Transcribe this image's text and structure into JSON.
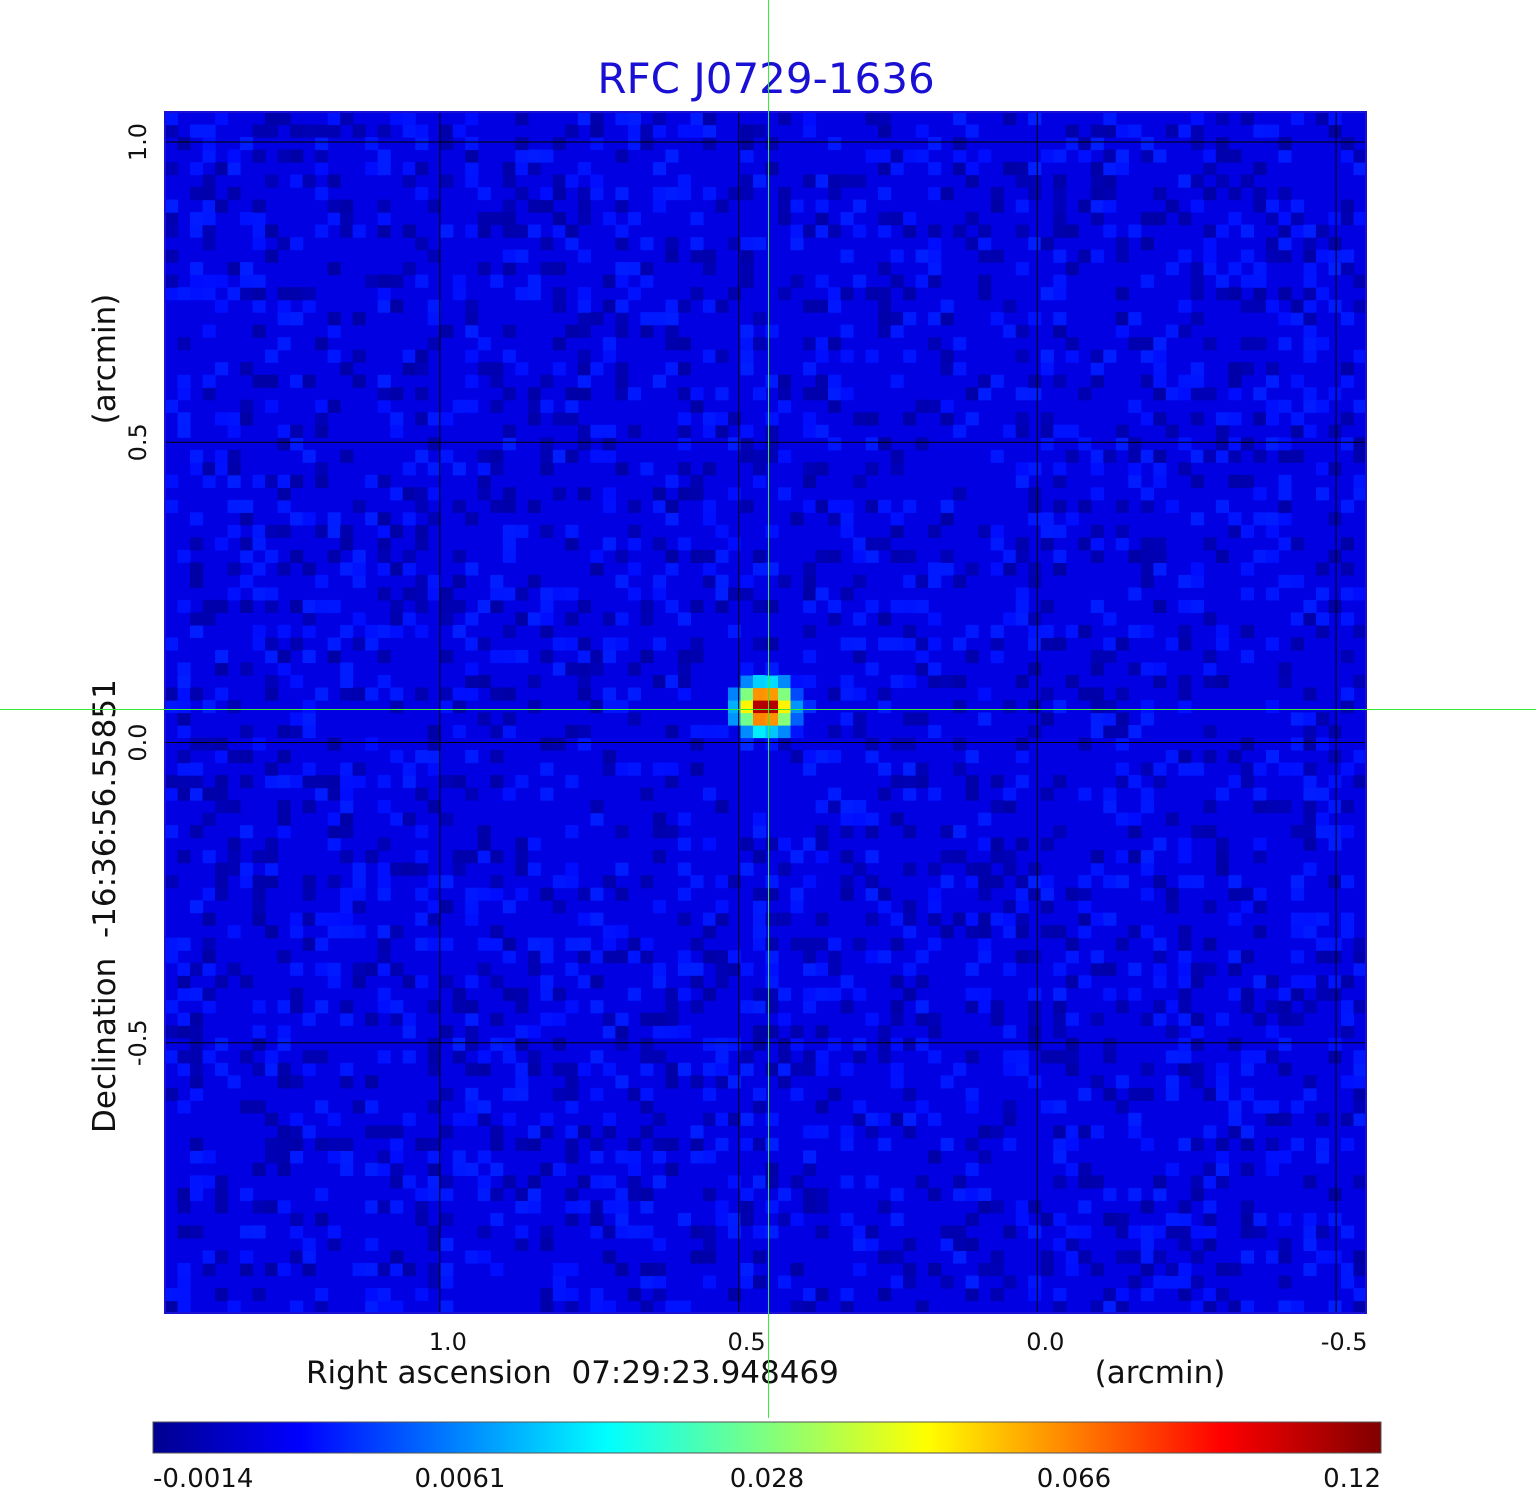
{
  "chart_data": {
    "type": "heatmap",
    "title": "RFC J0729-1636",
    "xlabel": "Right ascension  07:29:23.948469",
    "xlabel_unit": "(arcmin)",
    "ylabel": "Declination  -16:36:56.55851",
    "ylabel_unit": "(arcmin)",
    "x_axis": {
      "direction": "decreasing",
      "range": [
        1.46,
        -0.55
      ],
      "ticks": [
        1.0,
        0.5,
        0.0,
        -0.5
      ],
      "tick_labels": [
        "1.0",
        "0.5",
        "0.0",
        "-0.5"
      ]
    },
    "y_axis": {
      "range": [
        -0.95,
        1.05
      ],
      "ticks": [
        1.0,
        0.5,
        0.0,
        -0.5
      ],
      "tick_labels": [
        "1.0",
        "0.5",
        "0.0",
        "-0.5"
      ]
    },
    "grid": true,
    "colormap": "jet",
    "colorbar": {
      "orientation": "horizontal",
      "scale": "nonlinear",
      "ticks": [
        -0.0014,
        0.0061,
        0.028,
        0.066,
        0.12
      ],
      "tick_labels": [
        "-0.0014",
        "0.0061",
        "0.028",
        "0.066",
        "0.12"
      ],
      "range": [
        -0.0014,
        0.12
      ]
    },
    "peak": {
      "x": 0.455,
      "y": 0.06,
      "value": 0.12
    },
    "background_level": 0.0015,
    "crosshair": {
      "color": "#33ee33",
      "x": 0.45,
      "y": 0.055
    },
    "colors": {
      "title": "#1a10d4",
      "frame": "#1a10d4",
      "grid": "#000000"
    }
  }
}
